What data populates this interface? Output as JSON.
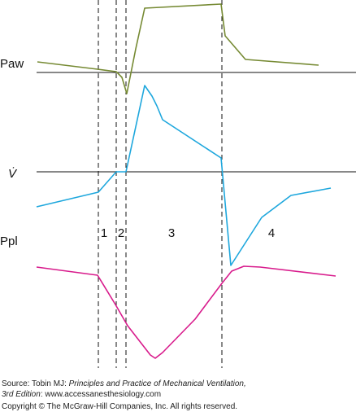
{
  "labels": {
    "paw": "Paw",
    "flow": "V̇",
    "ppl": "Ppl"
  },
  "phases": [
    "1",
    "2",
    "3",
    "4"
  ],
  "source": {
    "prefix": "Source: Tobin MJ: ",
    "book_line1": "Principles and Practice of Mechanical Ventilation,",
    "book_line2": "3rd Edition",
    "url": ": www.accessanesthesiology.com",
    "copyright": "Copyright © The McGraw-Hill Companies, Inc. All rights reserved."
  }
}
